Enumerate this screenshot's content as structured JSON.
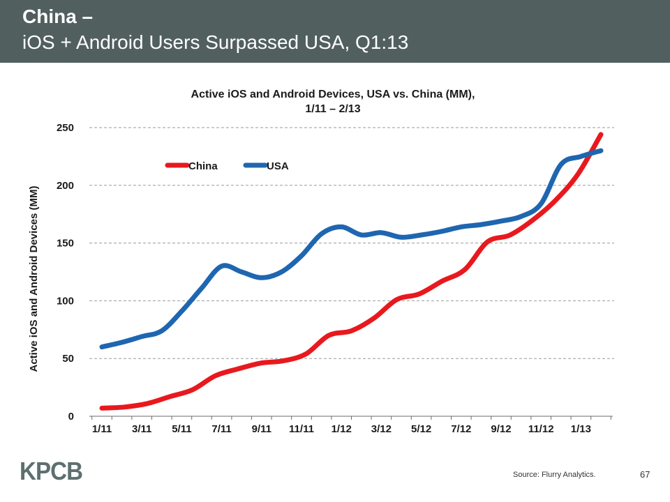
{
  "header": {
    "title_line1": "China –",
    "title_line2": "iOS + Android Users Surpassed USA, Q1:13",
    "bg_color": "#525f5f"
  },
  "chart_data": {
    "type": "line",
    "title_line1": "Active iOS and Android Devices, USA vs. China (MM),",
    "title_line2": "1/11 – 2/13",
    "ylabel": "Active iOS and Android Devices (MM)",
    "xlabel": "",
    "ylim": [
      0,
      250
    ],
    "yticks": [
      0,
      50,
      100,
      150,
      200,
      250
    ],
    "grid": true,
    "legend_position": "top-left",
    "x": [
      "1/11",
      "2/11",
      "3/11",
      "4/11",
      "5/11",
      "6/11",
      "7/11",
      "8/11",
      "9/11",
      "10/11",
      "11/11",
      "12/11",
      "1/12",
      "2/12",
      "3/12",
      "4/12",
      "5/12",
      "6/12",
      "7/12",
      "8/12",
      "9/12",
      "10/12",
      "11/12",
      "12/12",
      "1/13",
      "2/13"
    ],
    "xtick_labels": [
      "1/11",
      "3/11",
      "5/11",
      "7/11",
      "9/11",
      "11/11",
      "1/12",
      "3/12",
      "5/12",
      "7/12",
      "9/12",
      "11/12",
      "1/13"
    ],
    "series": [
      {
        "name": "China",
        "color": "#e8191e",
        "values": [
          7,
          8,
          11,
          17,
          23,
          35,
          41,
          46,
          48,
          54,
          70,
          74,
          85,
          101,
          106,
          117,
          127,
          151,
          157,
          170,
          187,
          210,
          244,
          null,
          null,
          null
        ]
      },
      {
        "name": "USA",
        "color": "#1f66b0",
        "values": [
          60,
          64,
          69,
          74,
          91,
          111,
          130,
          125,
          120,
          125,
          139,
          158,
          164,
          157,
          159,
          155,
          157,
          160,
          164,
          166,
          169,
          173,
          184,
          218,
          225,
          230
        ]
      }
    ]
  },
  "footer": {
    "logo": "KPCB",
    "source": "Source: Flurry Analytics.",
    "page_number": "67"
  }
}
